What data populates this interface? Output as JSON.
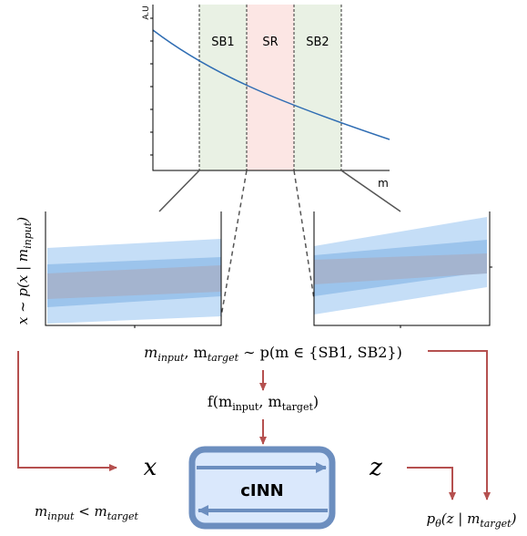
{
  "plot": {
    "y_label": "A.U",
    "x_label": "m",
    "regions": [
      "SB1",
      "SR",
      "SB2"
    ]
  },
  "left_label": [
    "x ∼ p(x | m",
    "input",
    ")"
  ],
  "sampling": [
    "m",
    "input",
    ", m",
    "target",
    " ∼ p(m ∈ {SB1, SB2})"
  ],
  "conditioning": [
    "f(m",
    "input",
    ", m",
    "target",
    ")"
  ],
  "input_node": "x",
  "output_node": "z",
  "model": "cINN",
  "constraint": [
    "m",
    "input",
    " < m",
    "target"
  ],
  "output_density": [
    "p",
    "θ",
    "(z | m",
    "target",
    ")"
  ]
}
